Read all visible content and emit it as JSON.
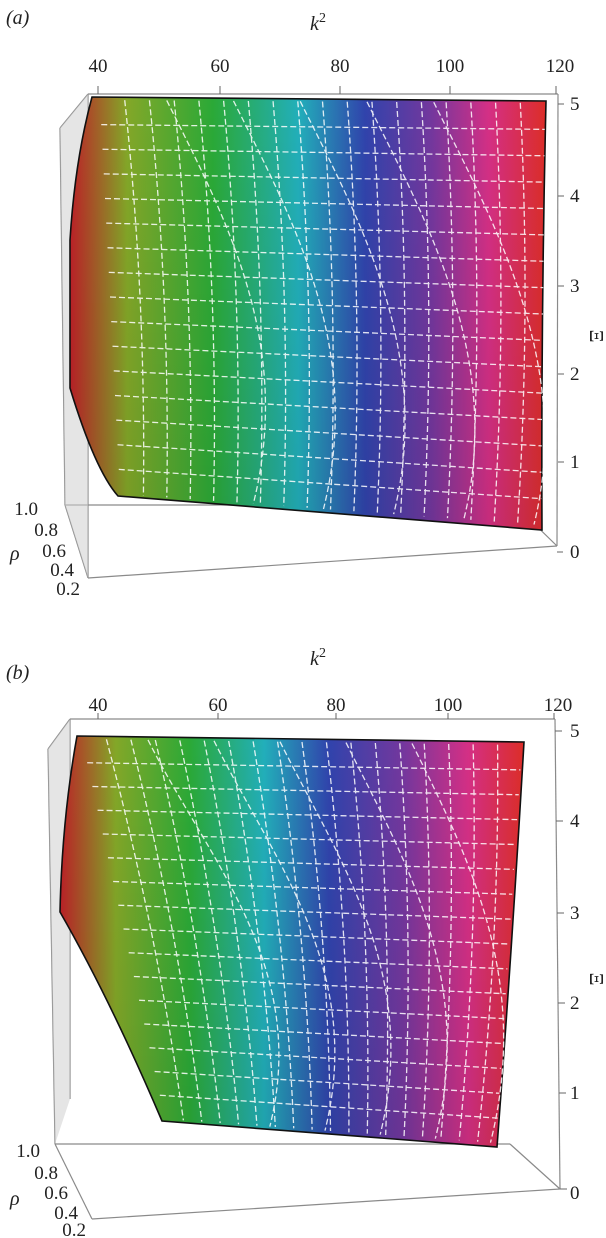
{
  "chart_data": [
    {
      "type": "surface3d",
      "panel_label": "(a)",
      "xlabel_base": "k",
      "xlabel_sup": "2",
      "ylabel": "ρ",
      "zlabel": "Ξ",
      "xlim": [
        40,
        120
      ],
      "ylim": [
        0.2,
        1.0
      ],
      "zlim": [
        0,
        5
      ],
      "x_ticks": [
        "40",
        "60",
        "80",
        "100",
        "120"
      ],
      "y_ticks": [
        "1.0",
        "0.8",
        "0.6",
        "0.4",
        "0.2"
      ],
      "z_ticks": [
        "0",
        "1",
        "2",
        "3",
        "4",
        "5"
      ],
      "surface": {
        "x_at_z_top": [
          41,
          118
        ],
        "x_at_z_bottom": [
          46,
          113
        ],
        "colormap": [
          "#d42a2a",
          "#6fb62e",
          "#26b53a",
          "#20b0c8",
          "#3545b8",
          "#7a3aa8",
          "#d5308e",
          "#e5302a"
        ]
      }
    },
    {
      "type": "surface3d",
      "panel_label": "(b)",
      "xlabel_base": "k",
      "xlabel_sup": "2",
      "ylabel": "ρ",
      "zlabel": "Ξ",
      "xlim": [
        40,
        120
      ],
      "ylim": [
        0.2,
        1.0
      ],
      "zlim": [
        0,
        5
      ],
      "x_ticks": [
        "40",
        "60",
        "80",
        "100",
        "120"
      ],
      "y_ticks": [
        "1.0",
        "0.8",
        "0.6",
        "0.4",
        "0.2"
      ],
      "z_ticks": [
        "0",
        "1",
        "2",
        "3",
        "4",
        "5"
      ],
      "surface": {
        "x_at_z_top": [
          40,
          115
        ],
        "x_at_z_bottom": [
          50,
          110
        ],
        "colormap": [
          "#d42a2a",
          "#6fb62e",
          "#26b53a",
          "#20b0c8",
          "#3545b8",
          "#7a3aa8",
          "#d5308e",
          "#e5302a"
        ]
      }
    }
  ]
}
